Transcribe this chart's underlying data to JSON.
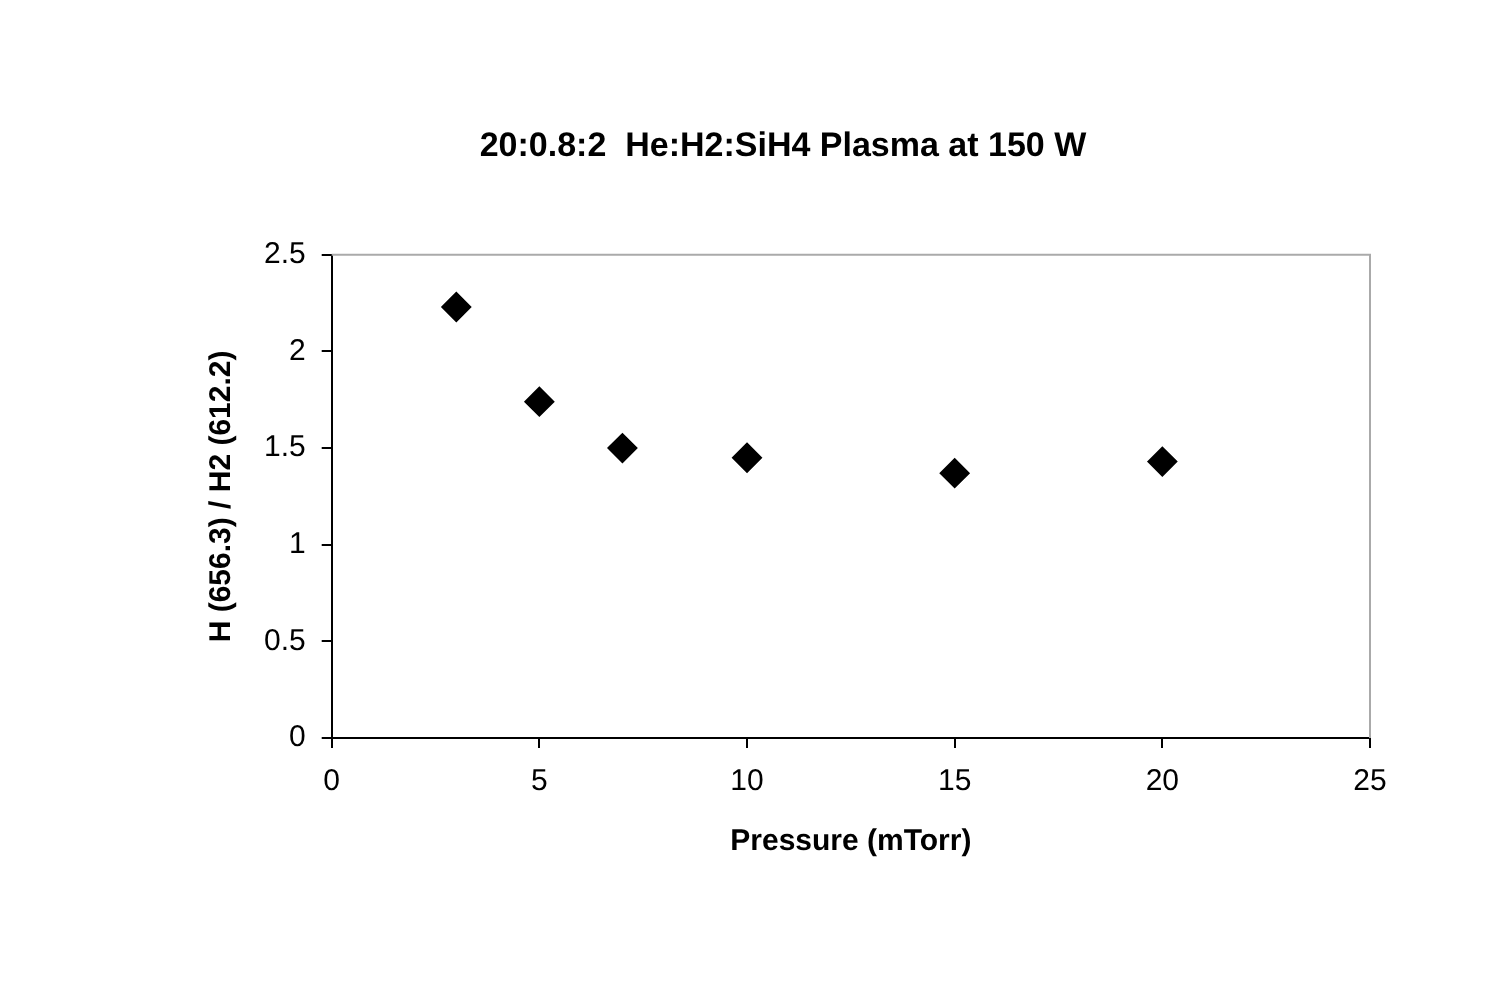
{
  "chart_data": {
    "type": "scatter",
    "title": "20:0.8:2  He:H2:SiH4 Plasma at 150 W",
    "xlabel": "Pressure (mTorr)",
    "ylabel": "H (656.3) / H2 (612.2)",
    "x": [
      3,
      5,
      7,
      10,
      15,
      20
    ],
    "series": [
      {
        "color": "#000000",
        "values": [
          2.23,
          1.74,
          1.5,
          1.45,
          1.37,
          1.43
        ]
      }
    ],
    "xlim": [
      0,
      25
    ],
    "xticks": [
      0,
      5,
      10,
      15,
      20,
      25
    ],
    "ylim": [
      0,
      2.5
    ],
    "yticks": [
      0,
      0.5,
      1,
      1.5,
      2,
      2.5
    ],
    "grid": false,
    "legend": false,
    "marker": "diamond"
  }
}
